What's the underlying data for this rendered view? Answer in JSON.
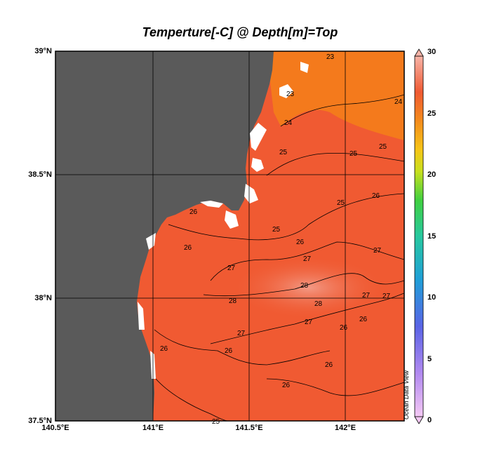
{
  "title": "Temperture[-C] @ Depth[m]=Top",
  "lat_labels": [
    "39°N",
    "38.5°N",
    "38°N",
    "37.5°N"
  ],
  "lon_labels": [
    "140.5°E",
    "141°E",
    "141.5°E",
    "142°E"
  ],
  "colorbar_labels": [
    "30",
    "25",
    "20",
    "15",
    "10",
    "5",
    "0"
  ],
  "credit": "Ocean Data View",
  "contour_labels": [
    "23",
    "24",
    "25",
    "26",
    "27",
    "28"
  ],
  "colors": {
    "land": "#5a5a5a",
    "ocean_base": "#f05a32",
    "ocean_north": "#f47a1c",
    "ocean_warm": "#f08a78",
    "grid": "#000000"
  }
}
